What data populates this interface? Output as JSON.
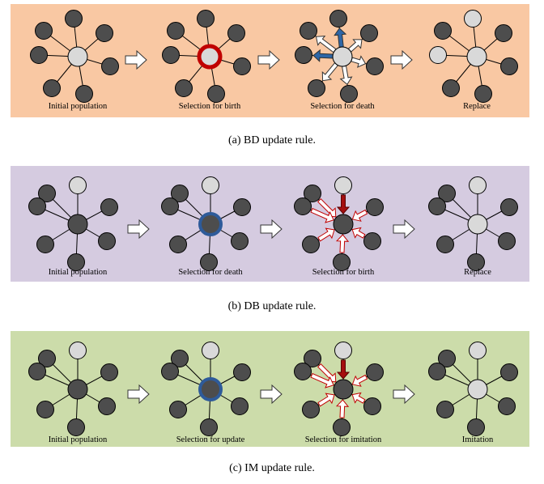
{
  "colors": {
    "bd_background": "#f9c8a3",
    "db_background": "#d5cbe0",
    "im_background": "#ccdcaa",
    "dark_node": "#4d4d4d",
    "light_node": "#d9d9d9",
    "selection_red": "#c00000",
    "selection_blue": "#2e5b9a",
    "arrow_blue": "#2e66a6",
    "arrow_darkred": "#a50f0f"
  },
  "panels": [
    {
      "id": "bd",
      "caption": "(a) BD update rule.",
      "steps": [
        {
          "label": "Initial population"
        },
        {
          "label": "Selection for birth"
        },
        {
          "label": "Selection for death"
        },
        {
          "label": "Replace"
        }
      ]
    },
    {
      "id": "db",
      "caption": "(b) DB update rule.",
      "steps": [
        {
          "label": "Initial population"
        },
        {
          "label": "Selection for death"
        },
        {
          "label": "Selection for birth"
        },
        {
          "label": "Replace"
        }
      ]
    },
    {
      "id": "im",
      "caption": "(c) IM update rule.",
      "steps": [
        {
          "label": "Initial population"
        },
        {
          "label": "Selection for update"
        },
        {
          "label": "Selection for imitation"
        },
        {
          "label": "Imitation"
        }
      ]
    }
  ]
}
